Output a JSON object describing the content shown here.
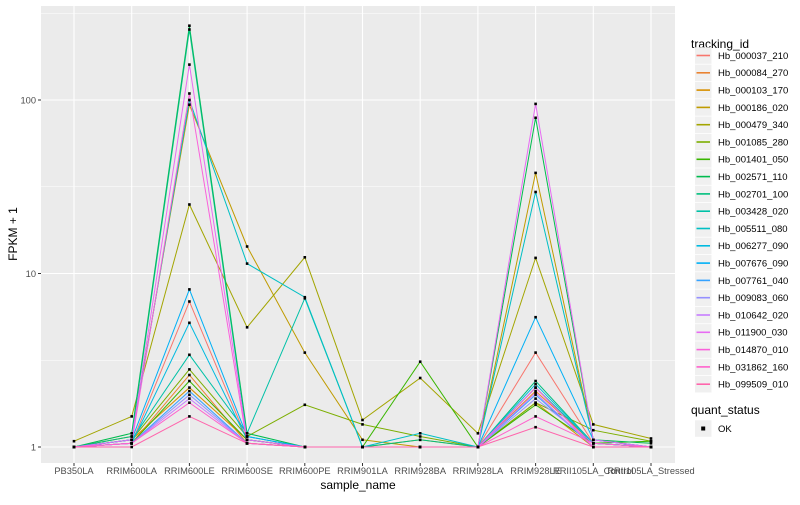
{
  "figure": {
    "background": "#FFFFFF",
    "panel_bg": "#EBEBEB",
    "grid_color": "#FFFFFF",
    "tick_color": "#333333",
    "axis_text_color": "#4D4D4D",
    "point_color": "#000000",
    "legend_key_bg": "#F0F0F0"
  },
  "chart_data": {
    "type": "line",
    "title": "",
    "xlabel": "sample_name",
    "ylabel": "FPKM + 1",
    "y_scale": "log10",
    "ylim": [
      0.81,
      348
    ],
    "y_ticks": [
      1,
      10,
      100
    ],
    "y_tick_labels": [
      "1",
      "10",
      "100"
    ],
    "y_minor_ticks": [
      3.162,
      31.62,
      316.2
    ],
    "grid": true,
    "legend_position": "right",
    "color_legend_title": "tracking_id",
    "shape_legend_title": "quant_status",
    "shape_legend_entries": [
      {
        "label": "OK",
        "shape": "filled-black-square"
      }
    ],
    "point_shape": "filled-black-square",
    "categories": [
      "PB350LA",
      "RRIM600LA",
      "RRIM600LE",
      "RRIM600SE",
      "RRIM600PE",
      "RRIM901LA",
      "RRIM928BA",
      "RRIM928LA",
      "RRIM928LE",
      "RRII105LA_Control",
      "RRII105LA_Stressed"
    ],
    "series": [
      {
        "name": "Hb_000037_210",
        "color": "#F8766D",
        "values": [
          1,
          1.05,
          6.9,
          1.1,
          1,
          1,
          1,
          1,
          3.5,
          1.05,
          1
        ]
      },
      {
        "name": "Hb_000084_270",
        "color": "#EA8331",
        "values": [
          1,
          1.05,
          2.6,
          1.05,
          1,
          1,
          1,
          1,
          2.1,
          1.05,
          1
        ]
      },
      {
        "name": "Hb_000103_170",
        "color": "#D89000",
        "values": [
          1,
          1.1,
          2.2,
          1.1,
          1,
          1,
          1.1,
          1,
          1.8,
          1,
          1
        ]
      },
      {
        "name": "Hb_000186_020",
        "color": "#C09B00",
        "values": [
          1,
          1.15,
          94,
          14.3,
          3.5,
          1.1,
          1,
          1,
          38,
          1.1,
          1
        ]
      },
      {
        "name": "Hb_000479_340",
        "color": "#A3A500",
        "values": [
          1.08,
          1.5,
          25,
          4.9,
          12.4,
          1.43,
          2.5,
          1.2,
          12.3,
          1.35,
          1.12
        ]
      },
      {
        "name": "Hb_001085_280",
        "color": "#7CAE00",
        "values": [
          1,
          1.1,
          2.8,
          1.15,
          1.75,
          1.35,
          1.15,
          1,
          1.8,
          1.25,
          1.08
        ]
      },
      {
        "name": "Hb_001401_050",
        "color": "#39B600",
        "values": [
          1,
          1.05,
          2.4,
          1.1,
          1,
          1,
          3.1,
          1,
          1.75,
          1.05,
          1.08
        ]
      },
      {
        "name": "Hb_002571_110",
        "color": "#00BB4E",
        "values": [
          1,
          1.2,
          268,
          1.2,
          1,
          1,
          1,
          1,
          79,
          1.1,
          1.05
        ]
      },
      {
        "name": "Hb_002701_100",
        "color": "#00BF7D",
        "values": [
          1,
          1.15,
          255,
          1.15,
          1,
          1,
          1.1,
          1,
          2.4,
          1.05,
          1
        ]
      },
      {
        "name": "Hb_003428_020",
        "color": "#00C1A7",
        "values": [
          1,
          1.1,
          3.4,
          1.2,
          7.2,
          1,
          1,
          1,
          2.2,
          1.05,
          1
        ]
      },
      {
        "name": "Hb_005511_080",
        "color": "#00BFC4",
        "values": [
          1,
          1.1,
          100,
          11.4,
          7.3,
          1,
          1.2,
          1,
          29.5,
          1.1,
          1
        ]
      },
      {
        "name": "Hb_006277_090",
        "color": "#00BAE0",
        "values": [
          1,
          1.05,
          5.2,
          1.1,
          1,
          1,
          1,
          1,
          2.3,
          1.05,
          1
        ]
      },
      {
        "name": "Hb_007676_090",
        "color": "#00B0F6",
        "values": [
          1,
          1.1,
          8.1,
          1.15,
          1,
          1,
          1,
          1,
          5.6,
          1.1,
          1
        ]
      },
      {
        "name": "Hb_007761_040",
        "color": "#35A2FF",
        "values": [
          1,
          1.05,
          2.1,
          1.05,
          1,
          1,
          1,
          1,
          2.0,
          1,
          1
        ]
      },
      {
        "name": "Hb_009083_060",
        "color": "#9590FF",
        "values": [
          1,
          1.05,
          2.0,
          1.05,
          1,
          1,
          1,
          1,
          1.9,
          1.05,
          1
        ]
      },
      {
        "name": "Hb_010642_020",
        "color": "#C77CFF",
        "values": [
          1,
          1.05,
          1.9,
          1.05,
          1,
          1,
          1,
          1,
          2.05,
          1,
          1
        ]
      },
      {
        "name": "Hb_011900_030",
        "color": "#E76BF3",
        "values": [
          1,
          1.1,
          160,
          1.1,
          1,
          1,
          1,
          1,
          95,
          1.1,
          1
        ]
      },
      {
        "name": "Hb_014870_010",
        "color": "#FA62DB",
        "values": [
          1,
          1.05,
          109,
          1.05,
          1,
          1,
          1,
          1,
          2.2,
          1,
          1
        ]
      },
      {
        "name": "Hb_031862_160",
        "color": "#FF61CC",
        "values": [
          1,
          1.05,
          1.8,
          1.05,
          1,
          1,
          1,
          1,
          1.5,
          1.05,
          1
        ]
      },
      {
        "name": "Hb_099509_010",
        "color": "#FF65AC",
        "values": [
          1,
          1,
          1.5,
          1.05,
          1,
          1,
          1,
          1,
          1.3,
          1,
          1
        ]
      }
    ]
  }
}
